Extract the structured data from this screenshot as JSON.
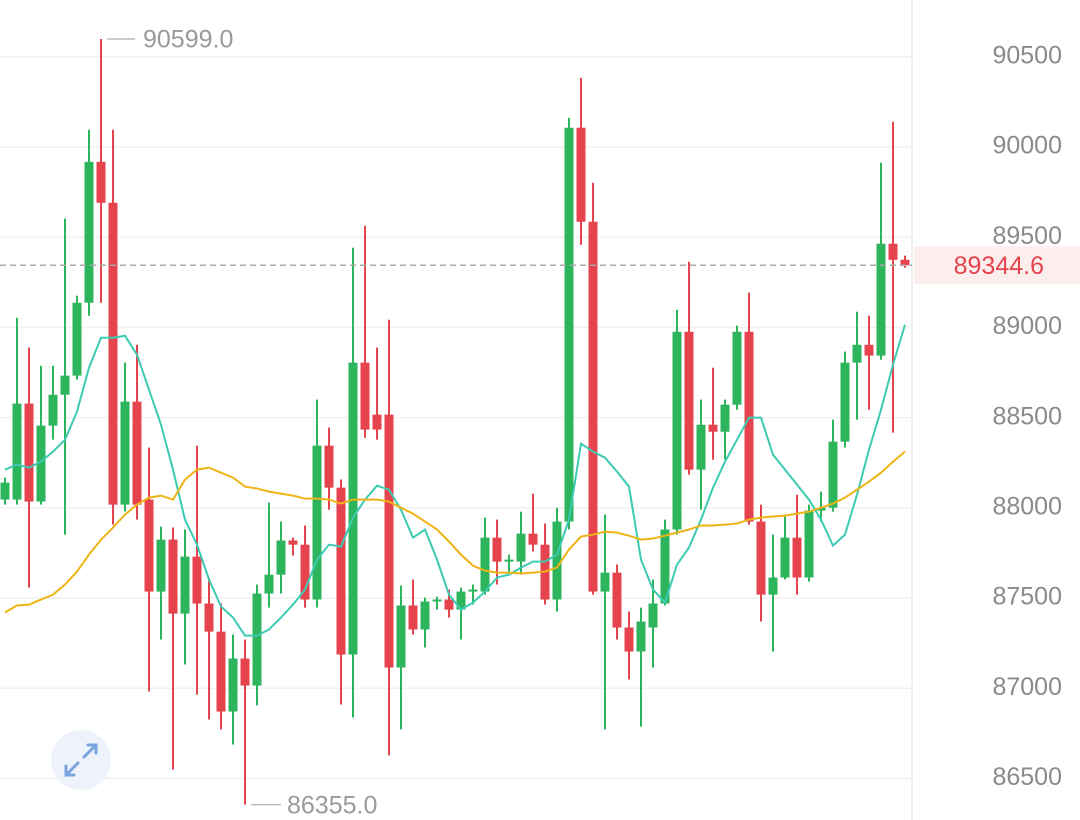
{
  "chart_data": {
    "type": "candlestick",
    "ylim": [
      86270,
      90815
    ],
    "yticks": [
      86500,
      87000,
      87500,
      88000,
      88500,
      89000,
      89500,
      90000,
      90500
    ],
    "grid": true,
    "up_color": "#2db55d",
    "down_color": "#e5434d",
    "high_label": "90599.0",
    "low_label": "86355.0",
    "last_label": "89344.6",
    "open": [
      88046,
      88046,
      88578,
      88035,
      88456,
      88627,
      88733,
      89137,
      89918,
      89691,
      88018,
      88589,
      88046,
      87536,
      87824,
      87414,
      87730,
      87470,
      87314,
      86871,
      87165,
      87015,
      87525,
      87630,
      87819,
      87796,
      87492,
      88345,
      88112,
      87187,
      88805,
      88517,
      88517,
      87115,
      87459,
      87326,
      87481,
      87492,
      87436,
      87536,
      87536,
      87835,
      87702,
      87702,
      87857,
      87796,
      87492,
      87924,
      90107,
      89586,
      87536,
      87641,
      87337,
      87204,
      87337,
      87470,
      87880,
      88976,
      88212,
      88461,
      88422,
      88572,
      88976,
      87924,
      87519,
      87614,
      87835,
      87614,
      87985,
      88001,
      88367,
      88805,
      88904,
      88844,
      89464,
      89375
    ],
    "high": [
      88168,
      89054,
      88888,
      88788,
      88788,
      89603,
      89176,
      90096,
      90599,
      90096,
      88805,
      88904,
      88334,
      87896,
      87891,
      87880,
      88345,
      87614,
      87470,
      87298,
      87270,
      87575,
      88029,
      87924,
      87835,
      87902,
      88600,
      88445,
      88157,
      89442,
      89564,
      88888,
      89043,
      87569,
      87603,
      87503,
      87508,
      87547,
      87558,
      87575,
      87946,
      87935,
      87741,
      87979,
      88079,
      87913,
      88001,
      90162,
      90384,
      89802,
      87963,
      87686,
      87425,
      87447,
      87603,
      87935,
      89098,
      89364,
      88600,
      88777,
      88600,
      89010,
      89193,
      88018,
      87852,
      87963,
      88073,
      88018,
      88090,
      88489,
      88866,
      89087,
      89065,
      89913,
      90140,
      89398
    ],
    "low": [
      88018,
      88018,
      87558,
      88018,
      88378,
      87852,
      88711,
      89065,
      89137,
      87907,
      87979,
      87935,
      86982,
      87270,
      86550,
      87132,
      86965,
      86827,
      86772,
      86688,
      86355,
      86905,
      87447,
      87525,
      87736,
      87447,
      87447,
      87990,
      86910,
      86838,
      88389,
      88378,
      86628,
      86772,
      87298,
      87226,
      87436,
      87392,
      87270,
      87464,
      87519,
      87575,
      87647,
      87630,
      87758,
      87464,
      87425,
      87880,
      89458,
      87519,
      86772,
      87270,
      87049,
      86788,
      87115,
      87459,
      87852,
      88184,
      87990,
      88267,
      88267,
      88544,
      87907,
      87370,
      87204,
      87603,
      87519,
      87591,
      87924,
      87979,
      88334,
      88489,
      88544,
      88821,
      88417,
      89331
    ],
    "close": [
      88140,
      88578,
      88035,
      88456,
      88627,
      88733,
      89137,
      89918,
      89691,
      88018,
      88589,
      88018,
      87536,
      87824,
      87414,
      87730,
      87470,
      87314,
      86871,
      87165,
      87015,
      87525,
      87630,
      87819,
      87796,
      87492,
      88345,
      88112,
      87187,
      88805,
      88434,
      88434,
      87115,
      87459,
      87326,
      87481,
      87492,
      87436,
      87536,
      87547,
      87835,
      87702,
      87713,
      87857,
      87796,
      87492,
      87924,
      90107,
      89586,
      87536,
      87641,
      87337,
      87204,
      87370,
      87470,
      87880,
      88976,
      88212,
      88461,
      88422,
      88572,
      88976,
      87924,
      87519,
      87614,
      87835,
      87614,
      87985,
      88001,
      88367,
      88805,
      88904,
      88844,
      89464,
      89375,
      89344.6
    ],
    "ma_lines": [
      {
        "color": "#3ccab2",
        "values": [
          88212,
          88240,
          88223,
          88256,
          88312,
          88378,
          88533,
          88777,
          88943,
          88943,
          88954,
          88849,
          88655,
          88461,
          88212,
          87935,
          87796,
          87603,
          87453,
          87392,
          87292,
          87292,
          87326,
          87392,
          87464,
          87547,
          87713,
          87796,
          87785,
          87946,
          88046,
          88123,
          88101,
          87990,
          87835,
          87880,
          87713,
          87519,
          87436,
          87475,
          87536,
          87614,
          87630,
          87669,
          87702,
          87702,
          87741,
          87935,
          88356,
          88312,
          88278,
          88201,
          88118,
          87713,
          87547,
          87475,
          87686,
          87780,
          87935,
          88112,
          88256,
          88378,
          88500,
          88500,
          88295,
          88212,
          88129,
          88046,
          87935,
          87791,
          87852,
          88073,
          88323,
          88544,
          88794,
          89015
        ]
      },
      {
        "color": "#eeb416",
        "values": [
          87420,
          87459,
          87464,
          87492,
          87519,
          87575,
          87647,
          87741,
          87824,
          87891,
          87963,
          88018,
          88057,
          88068,
          88046,
          88157,
          88212,
          88223,
          88195,
          88168,
          88118,
          88107,
          88090,
          88079,
          88068,
          88051,
          88051,
          88046,
          88024,
          88046,
          88046,
          88046,
          88035,
          88001,
          87968,
          87924,
          87880,
          87813,
          87741,
          87680,
          87652,
          87641,
          87641,
          87636,
          87641,
          87647,
          87669,
          87769,
          87841,
          87852,
          87868,
          87863,
          87846,
          87824,
          87830,
          87846,
          87863,
          87880,
          87902,
          87902,
          87907,
          87913,
          87935,
          87946,
          87952,
          87957,
          87968,
          87979,
          88001,
          88024,
          88057,
          88101,
          88145,
          88195,
          88256,
          88312
        ]
      }
    ]
  }
}
